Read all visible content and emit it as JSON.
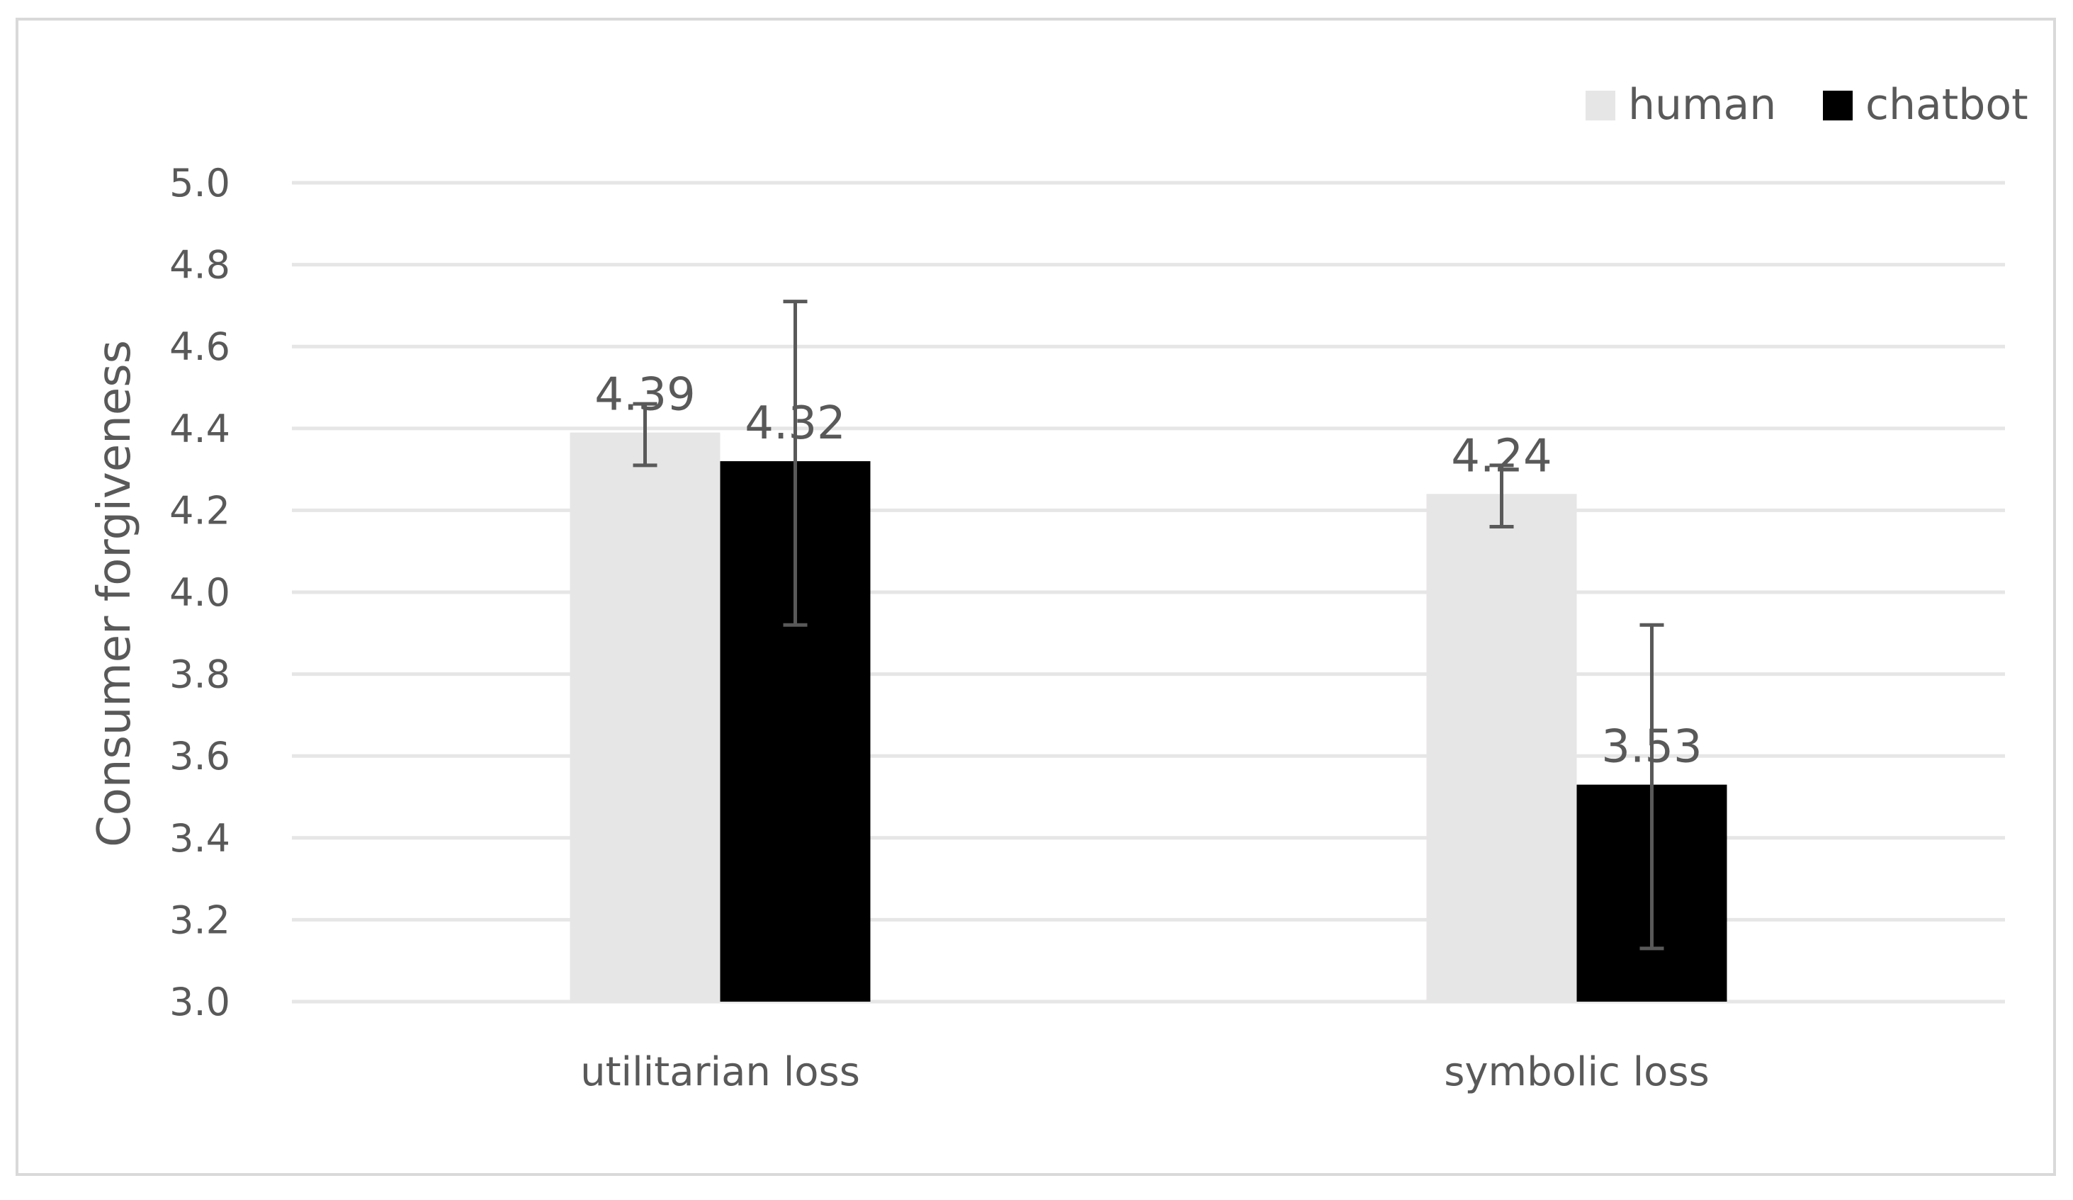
{
  "chart_data": {
    "type": "bar",
    "title": "",
    "xlabel": "",
    "ylabel": "Consumer forgiveness",
    "categories": [
      "utilitarian loss",
      "symbolic loss"
    ],
    "series": [
      {
        "name": "human",
        "color": "#e7e6e6",
        "values": [
          4.39,
          4.24
        ],
        "error_low": [
          4.31,
          4.16
        ],
        "error_high": [
          4.46,
          4.31
        ],
        "labels": [
          "4.39",
          "4.24"
        ]
      },
      {
        "name": "chatbot",
        "color": "#000000",
        "values": [
          4.32,
          3.53
        ],
        "error_low": [
          3.92,
          3.13
        ],
        "error_high": [
          4.71,
          3.92
        ],
        "labels": [
          "4.32",
          "3.53"
        ]
      }
    ],
    "ylim": [
      3.0,
      5.0
    ],
    "yticks": [
      "3.0",
      "3.2",
      "3.4",
      "3.6",
      "3.8",
      "4.0",
      "4.2",
      "4.4",
      "4.6",
      "4.8",
      "5.0"
    ],
    "grid": true,
    "legend_position": "top-right",
    "gridline_color": "#e6e6e6",
    "errorbar_color": "#595959"
  }
}
